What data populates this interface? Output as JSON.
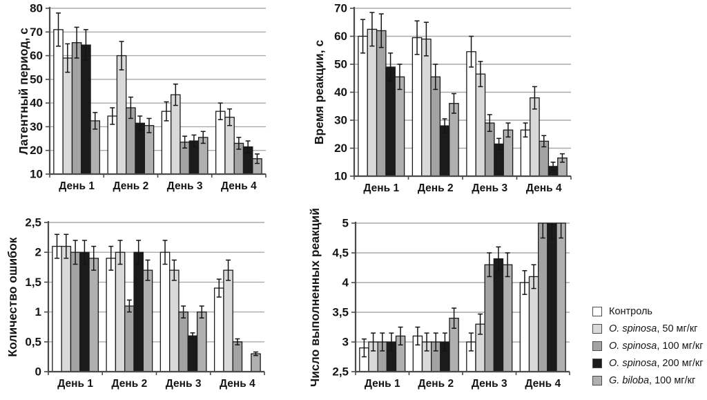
{
  "figure": {
    "background": "#ffffff",
    "categories": [
      "День 1",
      "День 2",
      "День 3",
      "День 4"
    ],
    "series_names": [
      "Контроль",
      "O. spinosa, 50 мг/кг",
      "O. spinosa, 100 мг/кг",
      "O. spinosa, 200 мг/кг",
      "G. biloba, 100 мг/кг"
    ],
    "series_colors": [
      "#ffffff",
      "#d9d9d9",
      "#a3a3a3",
      "#1b1b1b",
      "#b0b0b0"
    ],
    "decimal_separator": ","
  },
  "legend": {
    "position": "right-bottom",
    "items": [
      {
        "italic": "",
        "text": "Контроль",
        "color": "#ffffff"
      },
      {
        "italic": "O. spinosa",
        "text": ", 50 мг/кг",
        "color": "#d9d9d9"
      },
      {
        "italic": "O. spinosa",
        "text": ", 100 мг/кг",
        "color": "#a3a3a3"
      },
      {
        "italic": "O. spinosa",
        "text": ", 200 мг/кг",
        "color": "#1b1b1b"
      },
      {
        "italic": "G. biloba",
        "text": ", 100 мг/кг",
        "color": "#b0b0b0"
      }
    ]
  },
  "chart_data": [
    {
      "id": "latent-period",
      "type": "bar",
      "title": "",
      "ylabel": "Латентный период, с",
      "xlabel": "",
      "categories": [
        "День 1",
        "День 2",
        "День 3",
        "День 4"
      ],
      "ylim": [
        10,
        80
      ],
      "ytick_step": 10,
      "grid": true,
      "series": [
        {
          "name": "Контроль",
          "values": [
            71,
            34.5,
            36.5,
            36.5
          ],
          "errors": [
            7,
            3.5,
            4,
            3.5
          ]
        },
        {
          "name": "O. spinosa, 50 мг/кг",
          "values": [
            59,
            60,
            43.5,
            34
          ],
          "errors": [
            6,
            6,
            4.5,
            3.5
          ]
        },
        {
          "name": "O. spinosa, 100 мг/кг",
          "values": [
            65.5,
            38,
            23.5,
            23
          ],
          "errors": [
            6.5,
            4.5,
            2.5,
            2.5
          ]
        },
        {
          "name": "O. spinosa, 200 мг/кг",
          "values": [
            64.5,
            31.5,
            24,
            21.5
          ],
          "errors": [
            6.5,
            3,
            2.5,
            2.5
          ]
        },
        {
          "name": "G. biloba, 100 мг/кг",
          "values": [
            32.5,
            30.5,
            25.5,
            16.5
          ],
          "errors": [
            3.5,
            3,
            2.5,
            2
          ]
        }
      ]
    },
    {
      "id": "reaction-time",
      "type": "bar",
      "title": "",
      "ylabel": "Время реакции, с",
      "xlabel": "",
      "categories": [
        "День 1",
        "День 2",
        "День 3",
        "День 4"
      ],
      "ylim": [
        10,
        70
      ],
      "ytick_step": 10,
      "grid": true,
      "series": [
        {
          "name": "Контроль",
          "values": [
            60,
            59.5,
            54.5,
            26.5
          ],
          "errors": [
            6,
            6,
            5.5,
            2.5
          ]
        },
        {
          "name": "O. spinosa, 50 мг/кг",
          "values": [
            62.5,
            59,
            46.5,
            38
          ],
          "errors": [
            6,
            6,
            4.5,
            4
          ]
        },
        {
          "name": "O. spinosa, 100 мг/кг",
          "values": [
            62,
            45.5,
            29,
            22.5
          ],
          "errors": [
            6,
            4.5,
            3,
            2
          ]
        },
        {
          "name": "O. spinosa, 200 мг/кг",
          "values": [
            49,
            28,
            21.5,
            13.5
          ],
          "errors": [
            5,
            2.5,
            2,
            1.5
          ]
        },
        {
          "name": "G. biloba, 100 мг/кг",
          "values": [
            45.5,
            36,
            26.5,
            16.5
          ],
          "errors": [
            4.5,
            3.5,
            2.5,
            1.5
          ]
        }
      ]
    },
    {
      "id": "error-count",
      "type": "bar",
      "title": "",
      "ylabel": "Количество ошибок",
      "xlabel": "",
      "categories": [
        "День 1",
        "День 2",
        "День 3",
        "День 4"
      ],
      "ylim": [
        0,
        2.5
      ],
      "ytick_step": 0.5,
      "grid": true,
      "series": [
        {
          "name": "Контроль",
          "values": [
            2.1,
            1.9,
            2.0,
            1.4
          ],
          "errors": [
            0.2,
            0.2,
            0.2,
            0.15
          ]
        },
        {
          "name": "O. spinosa, 50 мг/кг",
          "values": [
            2.1,
            2.0,
            1.7,
            1.7
          ],
          "errors": [
            0.2,
            0.2,
            0.17,
            0.17
          ]
        },
        {
          "name": "O. spinosa, 100 мг/кг",
          "values": [
            2.0,
            1.1,
            1.0,
            0.5
          ],
          "errors": [
            0.2,
            0.1,
            0.1,
            0.05
          ]
        },
        {
          "name": "O. spinosa, 200 мг/кг",
          "values": [
            2.0,
            2.0,
            0.6,
            null
          ],
          "errors": [
            0.2,
            0.2,
            0.05,
            null
          ]
        },
        {
          "name": "G. biloba, 100 мг/кг",
          "values": [
            1.9,
            1.7,
            1.0,
            0.3
          ],
          "errors": [
            0.2,
            0.17,
            0.1,
            0.03
          ]
        }
      ]
    },
    {
      "id": "performed-reactions",
      "type": "bar",
      "title": "",
      "ylabel": "Число выполненных реакций",
      "xlabel": "",
      "categories": [
        "День 1",
        "День 2",
        "День 3",
        "День 4"
      ],
      "ylim": [
        2.5,
        5
      ],
      "ytick_step": 0.5,
      "grid": true,
      "series": [
        {
          "name": "Контроль",
          "values": [
            2.9,
            3.1,
            3.0,
            4.0
          ],
          "errors": [
            0.15,
            0.15,
            0.15,
            0.2
          ]
        },
        {
          "name": "O. spinosa, 50 мг/кг",
          "values": [
            3.0,
            3.0,
            3.3,
            4.1
          ],
          "errors": [
            0.15,
            0.15,
            0.17,
            0.2
          ]
        },
        {
          "name": "O. spinosa, 100 мг/кг",
          "values": [
            3.0,
            3.0,
            4.3,
            5.0
          ],
          "errors": [
            0.15,
            0.15,
            0.2,
            0.25
          ]
        },
        {
          "name": "O. spinosa, 200 мг/кг",
          "values": [
            3.0,
            3.0,
            4.4,
            5.0
          ],
          "errors": [
            0.15,
            0.15,
            0.2,
            0.25
          ]
        },
        {
          "name": "G. biloba, 100 мг/кг",
          "values": [
            3.1,
            3.4,
            4.3,
            5.0
          ],
          "errors": [
            0.15,
            0.17,
            0.2,
            0.25
          ]
        }
      ]
    }
  ]
}
